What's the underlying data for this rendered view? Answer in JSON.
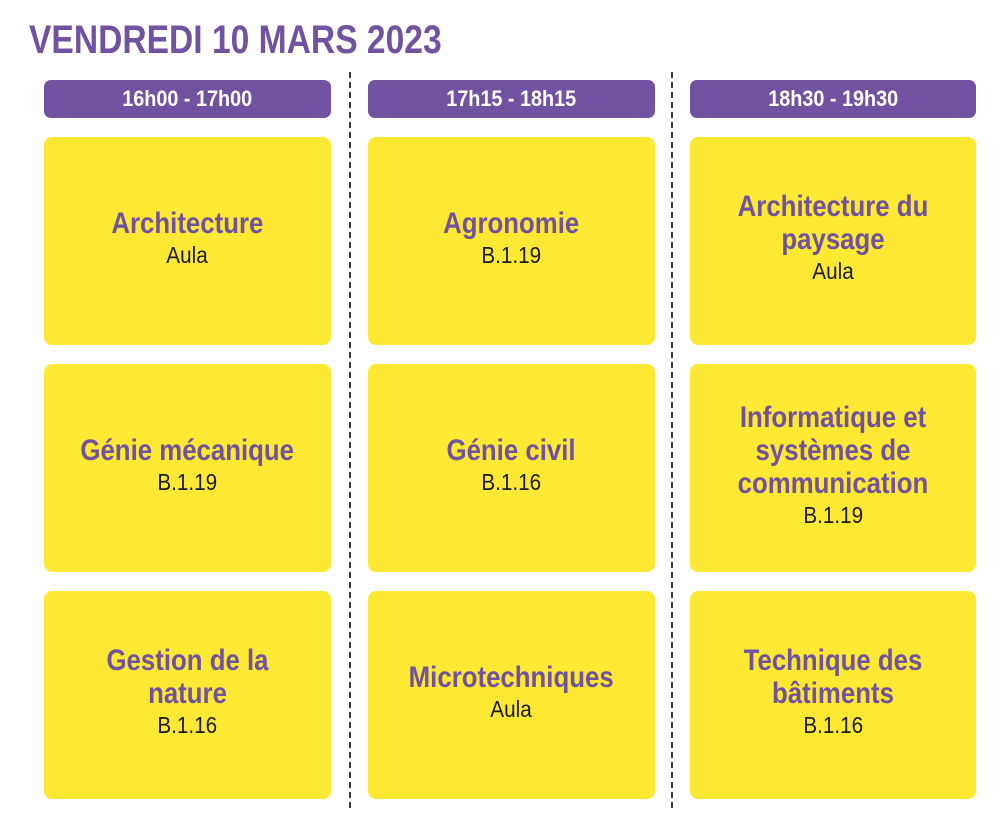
{
  "header": {
    "title": "VENDREDI 10 MARS 2023"
  },
  "colors": {
    "accent_purple": "#7152a0",
    "card_yellow": "#fde933",
    "room_text": "#1a1a1a"
  },
  "columns": [
    {
      "time": "16h00 - 17h00",
      "sessions": [
        {
          "title": "Architecture",
          "room": "Aula"
        },
        {
          "title": "Génie mécanique",
          "room": "B.1.19"
        },
        {
          "title": "Gestion de la nature",
          "room": "B.1.16"
        }
      ]
    },
    {
      "time": "17h15 - 18h15",
      "sessions": [
        {
          "title": "Agronomie",
          "room": "B.1.19"
        },
        {
          "title": "Génie civil",
          "room": "B.1.16"
        },
        {
          "title": "Microtechniques",
          "room": "Aula"
        }
      ]
    },
    {
      "time": "18h30 - 19h30",
      "sessions": [
        {
          "title": "Architecture du paysage",
          "room": "Aula"
        },
        {
          "title": "Informatique et systèmes de communication",
          "room": "B.1.19"
        },
        {
          "title": "Technique des bâtiments",
          "room": "B.1.16"
        }
      ]
    }
  ]
}
